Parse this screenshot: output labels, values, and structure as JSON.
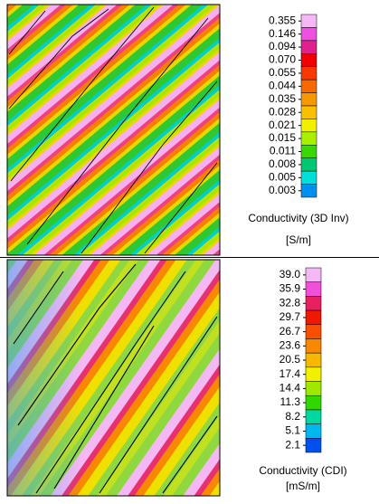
{
  "panels": [
    {
      "colorbar": {
        "ticks": [
          0.355,
          0.146,
          0.094,
          {
            "value": 0.07,
            "label": "0.070"
          },
          0.055,
          0.044,
          0.035,
          0.028,
          0.021,
          0.015,
          0.011,
          0.008,
          0.005,
          0.003
        ],
        "colors": [
          "#f4b8f4",
          "#f050e0",
          "#e0208c",
          "#f00000",
          "#f83800",
          "#f86800",
          "#f89800",
          "#f8c000",
          "#f0f000",
          "#a8f000",
          "#38d800",
          "#00c870",
          "#00e0d8",
          "#0090f0"
        ],
        "title": "Conductivity (3D Inv)",
        "unit": "[S/m]"
      }
    },
    {
      "colorbar": {
        "ticks": [
          {
            "value": 39,
            "label": "39.0"
          },
          35.9,
          32.8,
          29.7,
          26.7,
          23.6,
          20.5,
          17.4,
          14.4,
          11.3,
          8.2,
          5.1,
          2.1
        ],
        "colors": [
          "#f4b8f4",
          "#f050d8",
          "#e82060",
          "#f01800",
          "#f85000",
          "#f88800",
          "#f8b800",
          "#f0f000",
          "#a0e800",
          "#30d800",
          "#00d8a0",
          "#00b8f0",
          "#0050f0"
        ],
        "title": "Conductivity (CDI)",
        "unit": "[mS/m]"
      }
    }
  ]
}
